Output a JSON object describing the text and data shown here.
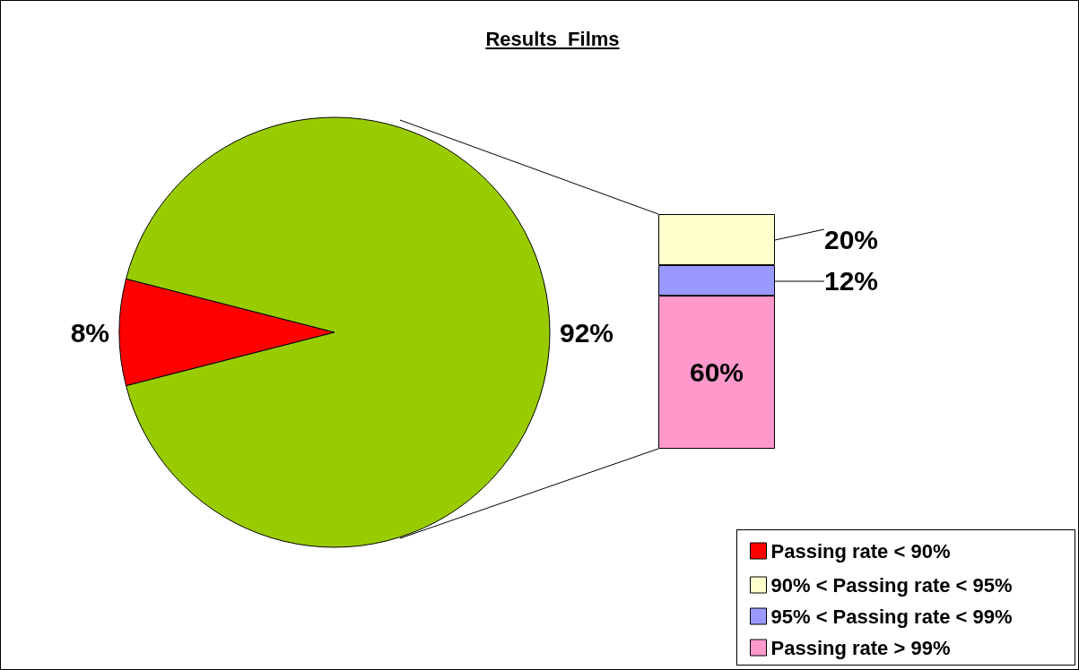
{
  "chart_data": [
    {
      "type": "pie",
      "title": "Results  Films",
      "categories": [
        "Passing rate < 90%",
        null
      ],
      "values": [
        8,
        92
      ],
      "colors": [
        "#ff0000",
        "#99cc00"
      ],
      "value_labels": [
        "8%",
        "92%"
      ],
      "legend": "bottom right"
    },
    {
      "type": "bar",
      "stacked": true,
      "categories": [
        null
      ],
      "series": [
        {
          "name": "Passing rate > 99%",
          "color": "#ff99cc",
          "values": [
            60
          ],
          "value_labels": [
            "60%"
          ]
        },
        {
          "name": "95% < Passing rate < 99%",
          "color": "#9999ff",
          "values": [
            12
          ],
          "value_labels": [
            "12%"
          ]
        },
        {
          "name": "90% < Passing rate < 95%",
          "color": "#ffffcc",
          "values": [
            20
          ],
          "value_labels": [
            "20%"
          ]
        }
      ],
      "legend": "bottom right"
    }
  ]
}
